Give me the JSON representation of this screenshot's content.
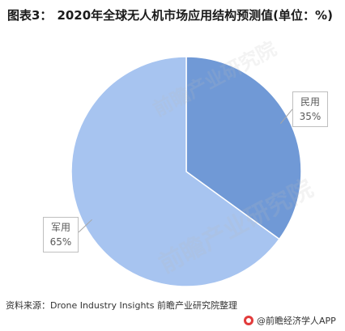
{
  "header": {
    "figure_label": "图表3：",
    "title": "2020年全球无人机市场应用结构预测值(单位：%)"
  },
  "chart_data": {
    "type": "pie",
    "title": "2020年全球无人机市场应用结构预测值(单位：%)",
    "slices": [
      {
        "label": "民用",
        "value": 35,
        "value_text": "35%",
        "color": "#7099d6"
      },
      {
        "label": "军用",
        "value": 65,
        "value_text": "65%",
        "color": "#a7c4f0"
      }
    ]
  },
  "watermark": {
    "text": "前瞻产业研究院"
  },
  "footer": {
    "source": "资料来源：Drone Industry Insights 前瞻产业研究院整理",
    "brand": "@前瞻经济学人APP",
    "brand_icon": "qianzhan-logo-icon"
  }
}
